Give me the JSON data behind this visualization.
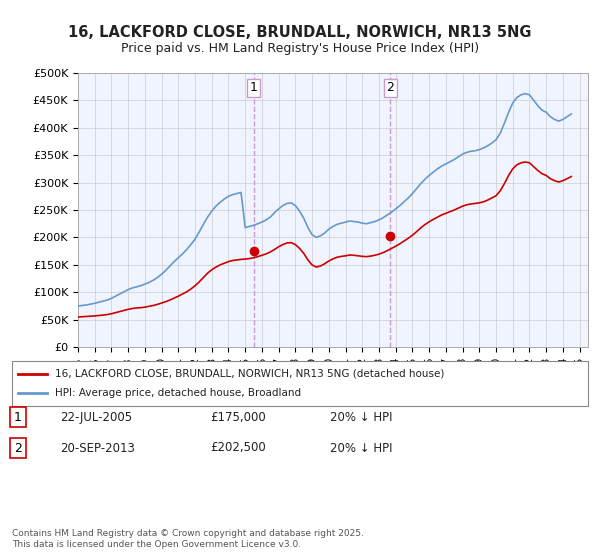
{
  "title_line1": "16, LACKFORD CLOSE, BRUNDALL, NORWICH, NR13 5NG",
  "title_line2": "Price paid vs. HM Land Registry's House Price Index (HPI)",
  "ylabel": "",
  "background_color": "#ffffff",
  "plot_bg_color": "#ffffff",
  "grid_color": "#cccccc",
  "hpi_color": "#6699cc",
  "property_color": "#cc0000",
  "sale1_date": "2005-07-22",
  "sale1_price": 175000,
  "sale1_label": "1",
  "sale2_date": "2013-09-20",
  "sale2_price": 202500,
  "sale2_label": "2",
  "vline_color": "#cc99cc",
  "ylim_min": 0,
  "ylim_max": 500000,
  "legend_property": "16, LACKFORD CLOSE, BRUNDALL, NORWICH, NR13 5NG (detached house)",
  "legend_hpi": "HPI: Average price, detached house, Broadland",
  "table_row1": [
    "1",
    "22-JUL-2005",
    "£175,000",
    "20% ↓ HPI"
  ],
  "table_row2": [
    "2",
    "20-SEP-2013",
    "£202,500",
    "20% ↓ HPI"
  ],
  "footnote": "Contains HM Land Registry data © Crown copyright and database right 2025.\nThis data is licensed under the Open Government Licence v3.0.",
  "hpi_years": [
    1995,
    1995.25,
    1995.5,
    1995.75,
    1996,
    1996.25,
    1996.5,
    1996.75,
    1997,
    1997.25,
    1997.5,
    1997.75,
    1998,
    1998.25,
    1998.5,
    1998.75,
    1999,
    1999.25,
    1999.5,
    1999.75,
    2000,
    2000.25,
    2000.5,
    2000.75,
    2001,
    2001.25,
    2001.5,
    2001.75,
    2002,
    2002.25,
    2002.5,
    2002.75,
    2003,
    2003.25,
    2003.5,
    2003.75,
    2004,
    2004.25,
    2004.5,
    2004.75,
    2005,
    2005.25,
    2005.5,
    2005.75,
    2006,
    2006.25,
    2006.5,
    2006.75,
    2007,
    2007.25,
    2007.5,
    2007.75,
    2008,
    2008.25,
    2008.5,
    2008.75,
    2009,
    2009.25,
    2009.5,
    2009.75,
    2010,
    2010.25,
    2010.5,
    2010.75,
    2011,
    2011.25,
    2011.5,
    2011.75,
    2012,
    2012.25,
    2012.5,
    2012.75,
    2013,
    2013.25,
    2013.5,
    2013.75,
    2014,
    2014.25,
    2014.5,
    2014.75,
    2015,
    2015.25,
    2015.5,
    2015.75,
    2016,
    2016.25,
    2016.5,
    2016.75,
    2017,
    2017.25,
    2017.5,
    2017.75,
    2018,
    2018.25,
    2018.5,
    2018.75,
    2019,
    2019.25,
    2019.5,
    2019.75,
    2020,
    2020.25,
    2020.5,
    2020.75,
    2021,
    2021.25,
    2021.5,
    2021.75,
    2022,
    2022.25,
    2022.5,
    2022.75,
    2023,
    2023.25,
    2023.5,
    2023.75,
    2024,
    2024.25,
    2024.5
  ],
  "hpi_values": [
    75000,
    76000,
    77000,
    78500,
    80000,
    82000,
    84000,
    86000,
    89000,
    93000,
    97000,
    101000,
    105000,
    108000,
    110000,
    112000,
    115000,
    118000,
    122000,
    127000,
    133000,
    140000,
    148000,
    156000,
    163000,
    170000,
    178000,
    187000,
    197000,
    210000,
    224000,
    237000,
    248000,
    257000,
    264000,
    270000,
    275000,
    278000,
    280000,
    282000,
    218000,
    220000,
    222000,
    225000,
    228000,
    232000,
    237000,
    245000,
    252000,
    258000,
    262000,
    263000,
    258000,
    248000,
    235000,
    218000,
    205000,
    200000,
    203000,
    208000,
    215000,
    220000,
    224000,
    226000,
    228000,
    230000,
    229000,
    228000,
    226000,
    225000,
    227000,
    229000,
    232000,
    236000,
    241000,
    246000,
    252000,
    258000,
    265000,
    272000,
    280000,
    289000,
    298000,
    306000,
    313000,
    319000,
    325000,
    330000,
    334000,
    338000,
    342000,
    347000,
    352000,
    355000,
    357000,
    358000,
    360000,
    363000,
    367000,
    372000,
    378000,
    390000,
    408000,
    428000,
    445000,
    455000,
    460000,
    462000,
    460000,
    450000,
    440000,
    432000,
    428000,
    420000,
    415000,
    412000,
    415000,
    420000,
    425000
  ],
  "prop_years": [
    1995,
    1995.25,
    1995.5,
    1995.75,
    1996,
    1996.25,
    1996.5,
    1996.75,
    1997,
    1997.25,
    1997.5,
    1997.75,
    1998,
    1998.25,
    1998.5,
    1998.75,
    1999,
    1999.25,
    1999.5,
    1999.75,
    2000,
    2000.25,
    2000.5,
    2000.75,
    2001,
    2001.25,
    2001.5,
    2001.75,
    2002,
    2002.25,
    2002.5,
    2002.75,
    2003,
    2003.25,
    2003.5,
    2003.75,
    2004,
    2004.25,
    2004.5,
    2004.75,
    2005,
    2005.25,
    2005.5,
    2005.75,
    2006,
    2006.25,
    2006.5,
    2006.75,
    2007,
    2007.25,
    2007.5,
    2007.75,
    2008,
    2008.25,
    2008.5,
    2008.75,
    2009,
    2009.25,
    2009.5,
    2009.75,
    2010,
    2010.25,
    2010.5,
    2010.75,
    2011,
    2011.25,
    2011.5,
    2011.75,
    2012,
    2012.25,
    2012.5,
    2012.75,
    2013,
    2013.25,
    2013.5,
    2013.75,
    2014,
    2014.25,
    2014.5,
    2014.75,
    2015,
    2015.25,
    2015.5,
    2015.75,
    2016,
    2016.25,
    2016.5,
    2016.75,
    2017,
    2017.25,
    2017.5,
    2017.75,
    2018,
    2018.25,
    2018.5,
    2018.75,
    2019,
    2019.25,
    2019.5,
    2019.75,
    2020,
    2020.25,
    2020.5,
    2020.75,
    2021,
    2021.25,
    2021.5,
    2021.75,
    2022,
    2022.25,
    2022.5,
    2022.75,
    2023,
    2023.25,
    2023.5,
    2023.75,
    2024,
    2024.25,
    2024.5
  ],
  "prop_values": [
    55000,
    55500,
    56000,
    56500,
    57000,
    57800,
    58500,
    59500,
    61000,
    63000,
    65000,
    67000,
    69000,
    70500,
    71500,
    72000,
    73000,
    74500,
    76000,
    78000,
    80500,
    83000,
    86000,
    89500,
    93000,
    97000,
    101000,
    106000,
    112000,
    119000,
    127000,
    135000,
    141000,
    146000,
    150000,
    153000,
    156000,
    158000,
    159000,
    160000,
    160500,
    161500,
    163000,
    165000,
    167500,
    170000,
    173500,
    178000,
    183000,
    187000,
    190000,
    190500,
    187000,
    180000,
    171000,
    159000,
    150000,
    146000,
    148000,
    152000,
    157000,
    161000,
    164000,
    165500,
    166500,
    168000,
    167500,
    166500,
    165500,
    165000,
    166000,
    167500,
    169500,
    172500,
    176000,
    180000,
    184000,
    188500,
    193500,
    198500,
    204000,
    210500,
    217500,
    223500,
    228500,
    233000,
    237000,
    241000,
    244000,
    247000,
    250000,
    253500,
    257000,
    259500,
    261000,
    262000,
    263000,
    265000,
    268000,
    272000,
    276000,
    285000,
    298000,
    313000,
    325000,
    332500,
    336000,
    337500,
    336000,
    329000,
    322000,
    316000,
    313000,
    307000,
    303500,
    301000,
    303500,
    307000,
    311000
  ],
  "x_min": 1995,
  "x_max": 2025.5,
  "x_ticks": [
    1995,
    1996,
    1997,
    1998,
    1999,
    2000,
    2001,
    2002,
    2003,
    2004,
    2005,
    2006,
    2007,
    2008,
    2009,
    2010,
    2011,
    2012,
    2013,
    2014,
    2015,
    2016,
    2017,
    2018,
    2019,
    2020,
    2021,
    2022,
    2023,
    2024,
    2025
  ]
}
